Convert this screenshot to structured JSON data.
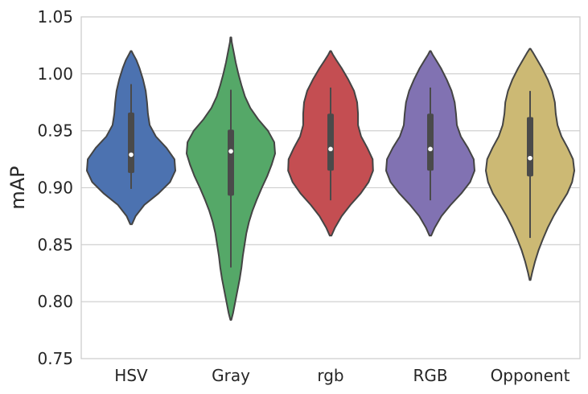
{
  "chart_data": {
    "type": "violin",
    "title": "",
    "xlabel": "",
    "ylabel": "mAP",
    "ylim": [
      0.75,
      1.05
    ],
    "yticks": [
      0.75,
      0.8,
      0.85,
      0.9,
      0.95,
      1.0,
      1.05
    ],
    "ytick_labels": [
      "0.75",
      "0.80",
      "0.85",
      "0.90",
      "0.95",
      "1.00",
      "1.05"
    ],
    "grid": true,
    "categories": [
      "HSV",
      "Gray",
      "rgb",
      "RGB",
      "Opponent"
    ],
    "colors": [
      "#4c72b0",
      "#55a868",
      "#c44e52",
      "#8172b2",
      "#ccb974"
    ],
    "series": [
      {
        "category": "HSV",
        "min": 0.868,
        "max": 1.02,
        "whisker_low": 0.899,
        "whisker_high": 0.991,
        "q1": 0.913,
        "median": 0.929,
        "q3": 0.966,
        "profile": [
          [
            0.868,
            0.02
          ],
          [
            0.875,
            0.1
          ],
          [
            0.885,
            0.3
          ],
          [
            0.895,
            0.62
          ],
          [
            0.905,
            0.88
          ],
          [
            0.915,
            1.0
          ],
          [
            0.925,
            0.98
          ],
          [
            0.935,
            0.8
          ],
          [
            0.945,
            0.56
          ],
          [
            0.955,
            0.42
          ],
          [
            0.965,
            0.38
          ],
          [
            0.975,
            0.36
          ],
          [
            0.985,
            0.33
          ],
          [
            0.995,
            0.27
          ],
          [
            1.005,
            0.19
          ],
          [
            1.012,
            0.12
          ],
          [
            1.017,
            0.05
          ],
          [
            1.02,
            0.01
          ]
        ]
      },
      {
        "category": "Gray",
        "min": 0.784,
        "max": 1.032,
        "whisker_low": 0.83,
        "whisker_high": 0.986,
        "q1": 0.893,
        "median": 0.932,
        "q3": 0.951,
        "profile": [
          [
            0.784,
            0.01
          ],
          [
            0.79,
            0.05
          ],
          [
            0.8,
            0.1
          ],
          [
            0.81,
            0.15
          ],
          [
            0.82,
            0.2
          ],
          [
            0.83,
            0.24
          ],
          [
            0.84,
            0.27
          ],
          [
            0.85,
            0.31
          ],
          [
            0.86,
            0.35
          ],
          [
            0.87,
            0.41
          ],
          [
            0.88,
            0.49
          ],
          [
            0.89,
            0.59
          ],
          [
            0.9,
            0.7
          ],
          [
            0.91,
            0.82
          ],
          [
            0.92,
            0.92
          ],
          [
            0.93,
            1.0
          ],
          [
            0.94,
            0.98
          ],
          [
            0.95,
            0.84
          ],
          [
            0.96,
            0.62
          ],
          [
            0.97,
            0.44
          ],
          [
            0.98,
            0.32
          ],
          [
            0.99,
            0.24
          ],
          [
            1.0,
            0.17
          ],
          [
            1.01,
            0.11
          ],
          [
            1.02,
            0.06
          ],
          [
            1.028,
            0.02
          ],
          [
            1.032,
            0.01
          ]
        ]
      },
      {
        "category": "rgb",
        "min": 0.858,
        "max": 1.02,
        "whisker_low": 0.889,
        "whisker_high": 0.988,
        "q1": 0.915,
        "median": 0.934,
        "q3": 0.965,
        "profile": [
          [
            0.858,
            0.02
          ],
          [
            0.865,
            0.1
          ],
          [
            0.875,
            0.25
          ],
          [
            0.885,
            0.45
          ],
          [
            0.895,
            0.68
          ],
          [
            0.905,
            0.86
          ],
          [
            0.915,
            0.96
          ],
          [
            0.925,
            0.95
          ],
          [
            0.935,
            0.83
          ],
          [
            0.945,
            0.69
          ],
          [
            0.955,
            0.62
          ],
          [
            0.965,
            0.62
          ],
          [
            0.975,
            0.6
          ],
          [
            0.985,
            0.53
          ],
          [
            0.995,
            0.4
          ],
          [
            1.005,
            0.25
          ],
          [
            1.012,
            0.13
          ],
          [
            1.017,
            0.05
          ],
          [
            1.02,
            0.01
          ]
        ]
      },
      {
        "category": "RGB",
        "min": 0.858,
        "max": 1.02,
        "whisker_low": 0.889,
        "whisker_high": 0.988,
        "q1": 0.915,
        "median": 0.934,
        "q3": 0.965,
        "profile": [
          [
            0.858,
            0.02
          ],
          [
            0.865,
            0.1
          ],
          [
            0.875,
            0.25
          ],
          [
            0.885,
            0.46
          ],
          [
            0.895,
            0.7
          ],
          [
            0.905,
            0.9
          ],
          [
            0.915,
            1.0
          ],
          [
            0.925,
            0.98
          ],
          [
            0.935,
            0.85
          ],
          [
            0.945,
            0.69
          ],
          [
            0.955,
            0.6
          ],
          [
            0.965,
            0.58
          ],
          [
            0.975,
            0.55
          ],
          [
            0.985,
            0.48
          ],
          [
            0.995,
            0.37
          ],
          [
            1.005,
            0.24
          ],
          [
            1.012,
            0.13
          ],
          [
            1.017,
            0.05
          ],
          [
            1.02,
            0.01
          ]
        ]
      },
      {
        "category": "Opponent",
        "min": 0.819,
        "max": 1.022,
        "whisker_low": 0.856,
        "whisker_high": 0.985,
        "q1": 0.91,
        "median": 0.926,
        "q3": 0.962,
        "profile": [
          [
            0.819,
            0.01
          ],
          [
            0.826,
            0.05
          ],
          [
            0.835,
            0.11
          ],
          [
            0.845,
            0.19
          ],
          [
            0.855,
            0.29
          ],
          [
            0.865,
            0.4
          ],
          [
            0.875,
            0.53
          ],
          [
            0.885,
            0.68
          ],
          [
            0.895,
            0.84
          ],
          [
            0.905,
            0.95
          ],
          [
            0.915,
            1.0
          ],
          [
            0.925,
            0.97
          ],
          [
            0.935,
            0.85
          ],
          [
            0.945,
            0.71
          ],
          [
            0.955,
            0.62
          ],
          [
            0.965,
            0.58
          ],
          [
            0.975,
            0.56
          ],
          [
            0.985,
            0.5
          ],
          [
            0.995,
            0.4
          ],
          [
            1.005,
            0.27
          ],
          [
            1.013,
            0.15
          ],
          [
            1.019,
            0.06
          ],
          [
            1.022,
            0.01
          ]
        ]
      }
    ]
  }
}
